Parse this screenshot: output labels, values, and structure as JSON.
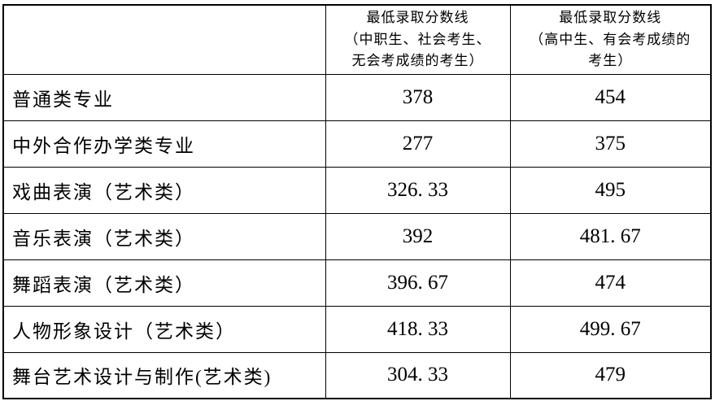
{
  "page": {
    "background_color": "#ffffff",
    "text_color": "#000000",
    "border_color": "#000000"
  },
  "table": {
    "header": {
      "col0": "",
      "col1": "最低录取分数线\n（中职生、社会考生、\n无会考成绩的考生）",
      "col2": "最低录取分数线\n（高中生、有会考成绩的\n考生）"
    },
    "rows": [
      {
        "label": "普通类专业",
        "col1": "378",
        "col2": "454"
      },
      {
        "label": "中外合作办学类专业",
        "col1": "277",
        "col2": "375"
      },
      {
        "label": "戏曲表演（艺术类）",
        "col1": "326. 33",
        "col2": "495"
      },
      {
        "label": "音乐表演（艺术类）",
        "col1": "392",
        "col2": "481. 67"
      },
      {
        "label": "舞蹈表演（艺术类）",
        "col1": "396. 67",
        "col2": "474"
      },
      {
        "label": "人物形象设计（艺术类）",
        "col1": "418. 33",
        "col2": "499. 67"
      },
      {
        "label": "舞台艺术设计与制作(艺术类)",
        "col1": "304. 33",
        "col2": "479"
      }
    ]
  },
  "chart_data": {
    "type": "table",
    "columns": [
      "",
      "最低录取分数线（中职生、社会考生、无会考成绩的考生）",
      "最低录取分数线（高中生、有会考成绩的考生）"
    ],
    "rows": [
      [
        "普通类专业",
        378,
        454
      ],
      [
        "中外合作办学类专业",
        277,
        375
      ],
      [
        "戏曲表演（艺术类）",
        326.33,
        495
      ],
      [
        "音乐表演（艺术类）",
        392,
        481.67
      ],
      [
        "舞蹈表演（艺术类）",
        396.67,
        474
      ],
      [
        "人物形象设计（艺术类）",
        418.33,
        499.67
      ],
      [
        "舞台艺术设计与制作(艺术类)",
        304.33,
        479
      ]
    ]
  }
}
